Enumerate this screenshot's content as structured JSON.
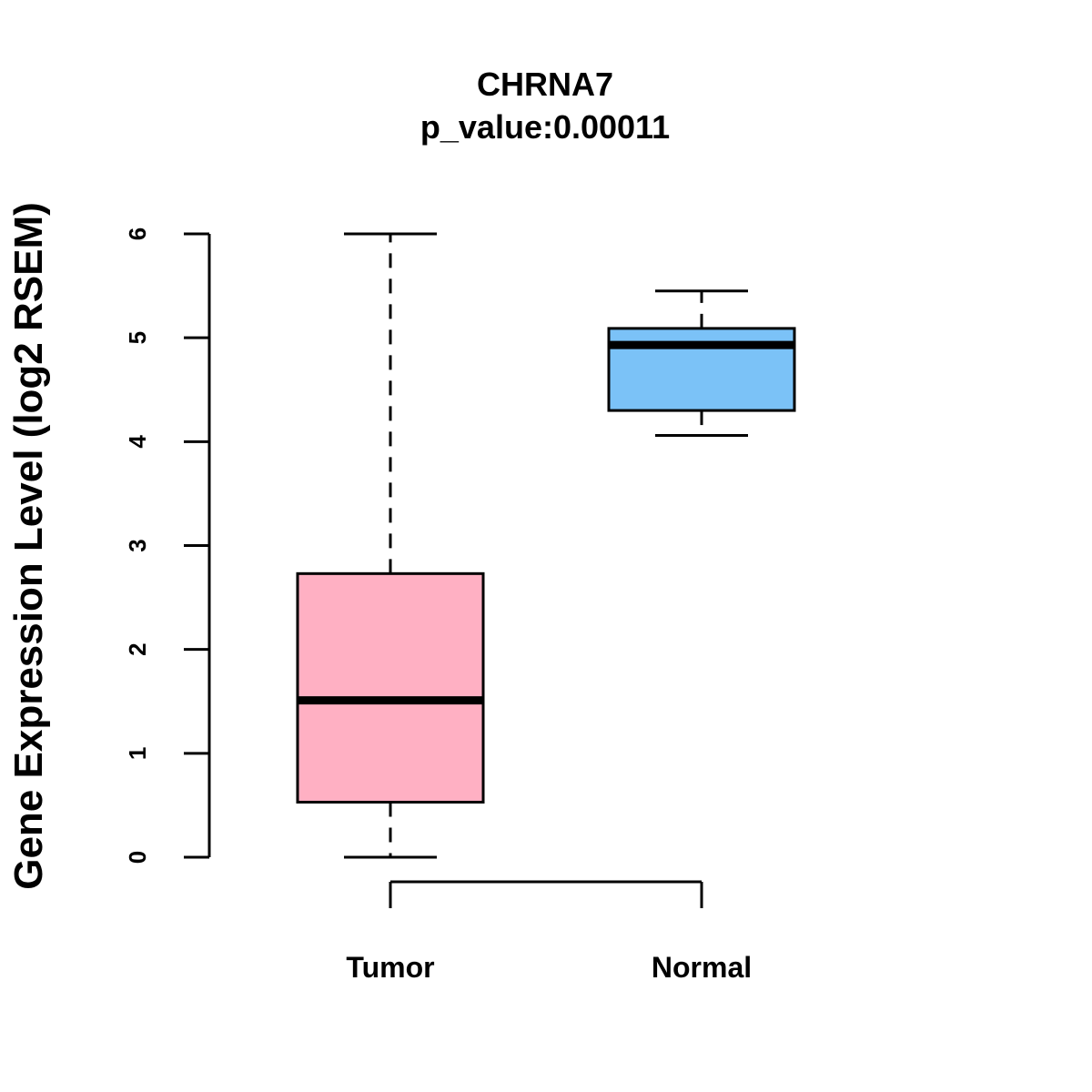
{
  "chart_data": {
    "type": "box",
    "title": "CHRNA7",
    "subtitle": "p_value:0.00011",
    "xlabel": "",
    "ylabel": "Gene Expression Level (log2 RSEM)",
    "ylim": [
      0,
      6
    ],
    "yticks": [
      0,
      1,
      2,
      3,
      4,
      5,
      6
    ],
    "categories": [
      "Tumor",
      "Normal"
    ],
    "boxes": [
      {
        "category": "Tumor",
        "min": 0.0,
        "q1": 0.53,
        "median": 1.51,
        "q3": 2.73,
        "max": 6.0,
        "color": "#FFB0C3"
      },
      {
        "category": "Normal",
        "min": 4.06,
        "q1": 4.3,
        "median": 4.93,
        "q3": 5.09,
        "max": 5.45,
        "color": "#7BC2F7"
      }
    ],
    "grid": false,
    "legend": "none"
  }
}
